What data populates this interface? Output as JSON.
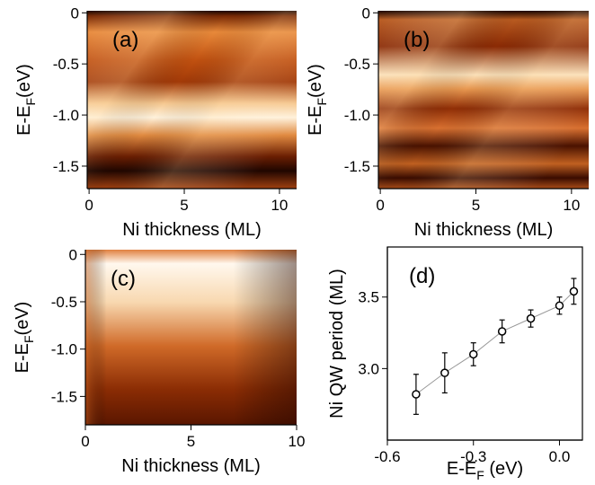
{
  "chart_data": [
    {
      "type": "heatmap",
      "panel_label": "(a)",
      "xlabel": "Ni thickness (ML)",
      "ylabel": "E-E",
      "ylabel_sub": "F",
      "ylabel_unit": "(eV)",
      "xlim": [
        -0.1,
        10.9
      ],
      "xticks": [
        0,
        5,
        10
      ],
      "ylim": [
        -1.72,
        0.02
      ],
      "yticks": [
        0,
        -0.5,
        {
          "value": -1.0,
          "label": "-1.0"
        },
        -1.5
      ]
    },
    {
      "type": "heatmap",
      "panel_label": "(b)",
      "xlabel": "Ni thickness (ML)",
      "ylabel": "E-E",
      "ylabel_sub": "F",
      "ylabel_unit": "(eV)",
      "xlim": [
        -0.1,
        10.9
      ],
      "xticks": [
        0,
        5,
        10
      ],
      "ylim": [
        -1.72,
        0.02
      ],
      "yticks": [
        0,
        -0.5,
        {
          "value": -1.0,
          "label": "-1.0"
        },
        -1.5
      ]
    },
    {
      "type": "heatmap",
      "panel_label": "(c)",
      "xlabel": "Ni thickness (ML)",
      "ylabel": "E-E",
      "ylabel_sub": "F",
      "ylabel_unit": "(eV)",
      "xlim": [
        0,
        10
      ],
      "xticks": [
        0,
        5,
        10
      ],
      "ylim": [
        -1.8,
        0.05
      ],
      "yticks": [
        0,
        -0.5,
        {
          "value": -1.0,
          "label": "-1.0"
        },
        -1.5
      ]
    },
    {
      "type": "scatter",
      "panel_label": "(d)",
      "xlabel": "E-E",
      "xlabel_sub": "F",
      "xlabel_unit": " (eV)",
      "ylabel": "Ni QW period  (ML)",
      "xlim": [
        -0.6,
        0.08
      ],
      "xticks": [
        -0.6,
        -0.3,
        {
          "value": 0.0,
          "label": "0.0"
        }
      ],
      "ylim": [
        2.5,
        3.85
      ],
      "yticks": [
        {
          "value": 3.0,
          "label": "3.0"
        },
        3.5
      ],
      "x": [
        -0.5,
        -0.4,
        -0.3,
        -0.2,
        -0.1,
        0.0,
        0.05
      ],
      "values": [
        2.82,
        2.97,
        3.1,
        3.26,
        3.35,
        3.44,
        3.54
      ],
      "errors": [
        0.14,
        0.14,
        0.08,
        0.08,
        0.06,
        0.06,
        0.09
      ],
      "color": "#000000",
      "line_color": "#999999"
    }
  ]
}
